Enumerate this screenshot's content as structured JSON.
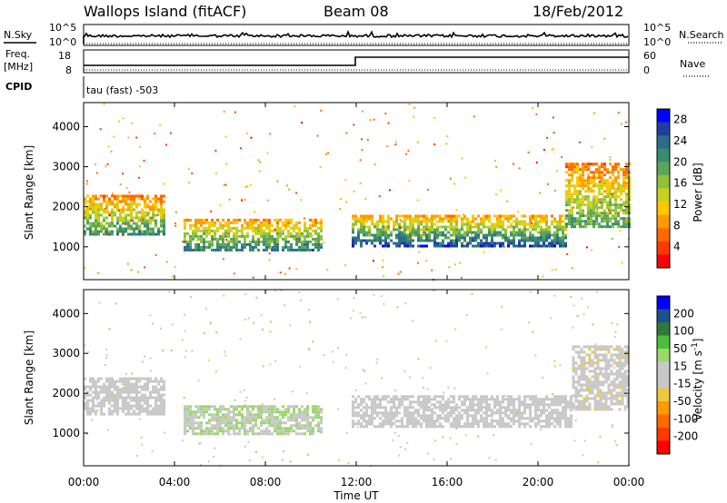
{
  "header": {
    "station": "Wallops Island (fitACF)",
    "beam": "Beam 08",
    "date": "18/Feb/2012"
  },
  "status_panels": {
    "nsky_label": "N.Sky",
    "nsearch_label": "N.Search",
    "noise_ticks": [
      "10^5",
      "10^0"
    ],
    "freq_label_1": "Freq.",
    "freq_label_2": "[MHz]",
    "freq_ticks": [
      "18",
      "8"
    ],
    "nave_label": "Nave",
    "nave_ticks": [
      "60",
      "0"
    ],
    "cpid_label": "CPID",
    "cpid_value": "tau (fast) -503"
  },
  "chart_data": [
    {
      "type": "heatmap",
      "title": "",
      "xlabel": "Time UT",
      "ylabel": "Slant Range [km]",
      "x_ticks": [
        "00:00",
        "04:00",
        "08:00",
        "12:00",
        "16:00",
        "20:00",
        "00:00"
      ],
      "y_ticks": [
        "1000",
        "2000",
        "3000",
        "4000"
      ],
      "xlim_hours": [
        0,
        24
      ],
      "ylim_km": [
        180,
        4600
      ],
      "colorbar": {
        "label": "Power [dB]",
        "ticks": [
          "4",
          "8",
          "12",
          "16",
          "20",
          "24",
          "28"
        ],
        "range": [
          0,
          30
        ],
        "colors": [
          "#0000ff",
          "#1f3fa0",
          "#2e6d8a",
          "#3a8c6e",
          "#5aa55a",
          "#8fc23a",
          "#c8d21e",
          "#ffc800",
          "#ff9a00",
          "#ff6a00",
          "#ff3a00",
          "#ff0000"
        ]
      },
      "echo_regions": [
        {
          "t_start": 0.0,
          "t_end": 3.5,
          "r_bottom_km": 1300,
          "r_top_km": 2300,
          "peak_db": 22
        },
        {
          "t_start": 4.4,
          "t_end": 10.5,
          "r_bottom_km": 900,
          "r_top_km": 1700,
          "peak_db": 24
        },
        {
          "t_start": 11.8,
          "t_end": 21.2,
          "r_bottom_km": 1050,
          "r_top_km": 1800,
          "peak_db": 26
        },
        {
          "t_start": 21.2,
          "t_end": 24.0,
          "r_bottom_km": 1500,
          "r_top_km": 3100,
          "peak_db": 20
        }
      ]
    },
    {
      "type": "heatmap",
      "title": "",
      "xlabel": "Time UT",
      "ylabel": "Slant Range [km]",
      "x_ticks": [
        "00:00",
        "04:00",
        "08:00",
        "12:00",
        "16:00",
        "20:00",
        "00:00"
      ],
      "y_ticks": [
        "1000",
        "2000",
        "3000",
        "4000"
      ],
      "xlim_hours": [
        0,
        24
      ],
      "ylim_km": [
        180,
        4600
      ],
      "colorbar": {
        "label": "Velocity [m s^-1]",
        "ticks": [
          "200",
          "100",
          "50",
          "15",
          "-15",
          "-50",
          "-100",
          "-200"
        ],
        "range": [
          -250,
          250
        ],
        "colors": [
          "#0000ff",
          "#1e5090",
          "#2e7a3a",
          "#4cbf3a",
          "#9ad86a",
          "#c8c8c8",
          "#c8c8c8",
          "#f0c840",
          "#ff9a00",
          "#ff6a00",
          "#ff3a00",
          "#ff0000"
        ]
      },
      "echo_regions": [
        {
          "t_start": 0.0,
          "t_end": 3.5,
          "r_bottom_km": 1500,
          "r_top_km": 2400,
          "velocity_ms": 0
        },
        {
          "t_start": 4.4,
          "t_end": 10.5,
          "r_bottom_km": 950,
          "r_top_km": 1700,
          "velocity_ms": 40
        },
        {
          "t_start": 11.8,
          "t_end": 21.5,
          "r_bottom_km": 1150,
          "r_top_km": 1950,
          "velocity_ms": 0
        },
        {
          "t_start": 21.5,
          "t_end": 24.0,
          "r_bottom_km": 1600,
          "r_top_km": 3200,
          "velocity_ms": -30
        }
      ]
    }
  ]
}
